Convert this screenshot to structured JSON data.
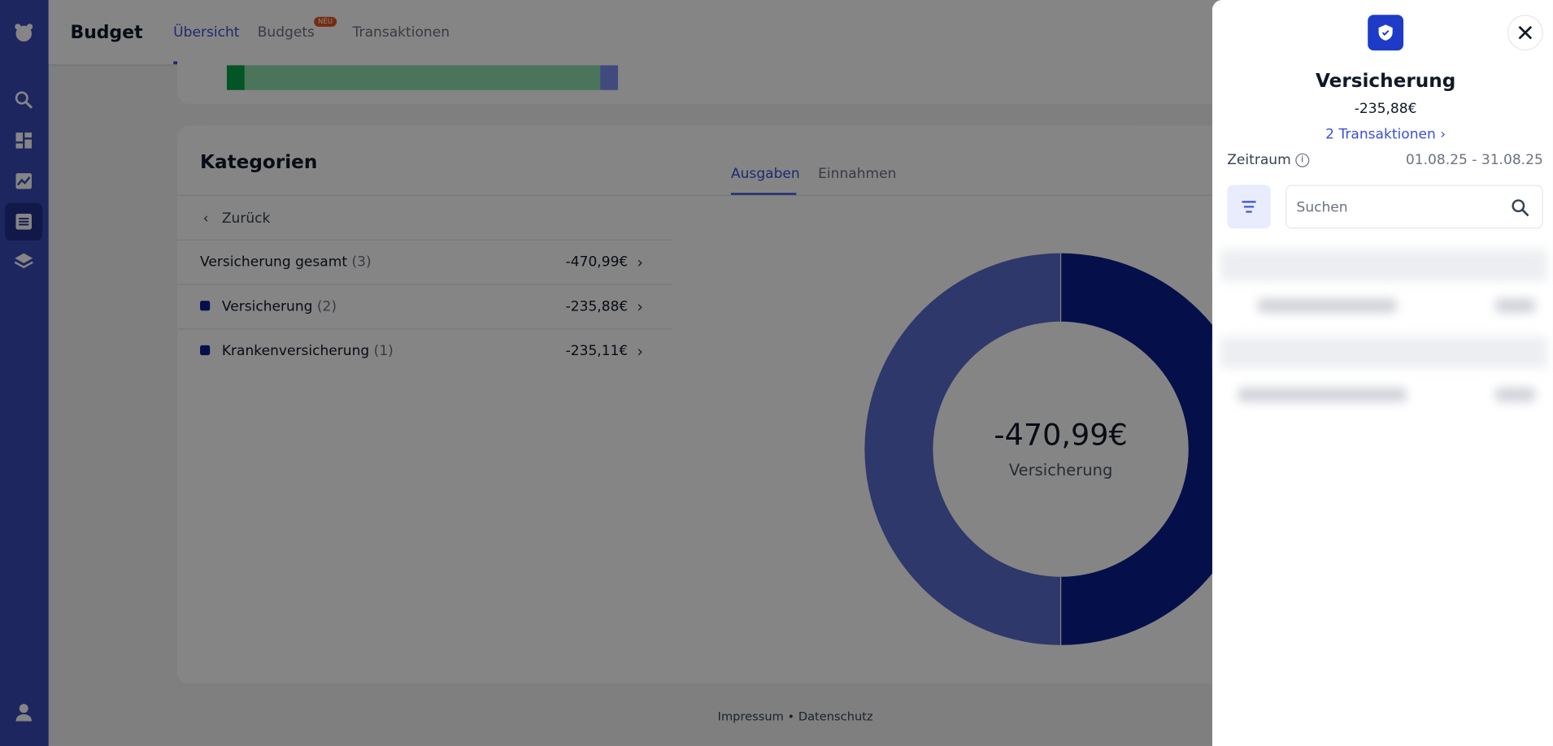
{
  "header": {
    "title": "Budget",
    "tabs": [
      "Übersicht",
      "Budgets",
      "Transaktionen"
    ],
    "badge": "NEU"
  },
  "categories": {
    "title": "Kategorien",
    "tabs": [
      "Ausgaben",
      "Einnahmen"
    ],
    "back": "Zurück",
    "rows": [
      {
        "label": "Versicherung gesamt",
        "count": "(3)",
        "amount": "-470,99€"
      },
      {
        "label": "Versicherung",
        "count": "(2)",
        "amount": "-235,88€"
      },
      {
        "label": "Krankenversicherung",
        "count": "(1)",
        "amount": "-235,11€"
      }
    ],
    "donut": {
      "total": "-470,99€",
      "label": "Versicherung"
    }
  },
  "footer": {
    "links": [
      "Impressum",
      "Datenschutz"
    ],
    "separator": "•"
  },
  "panel": {
    "title": "Versicherung",
    "amount": "-235,88€",
    "link": "2 Transaktionen",
    "period_label": "Zeitraum",
    "period": "01.08.25 - 31.08.25",
    "search_placeholder": "Suchen"
  }
}
